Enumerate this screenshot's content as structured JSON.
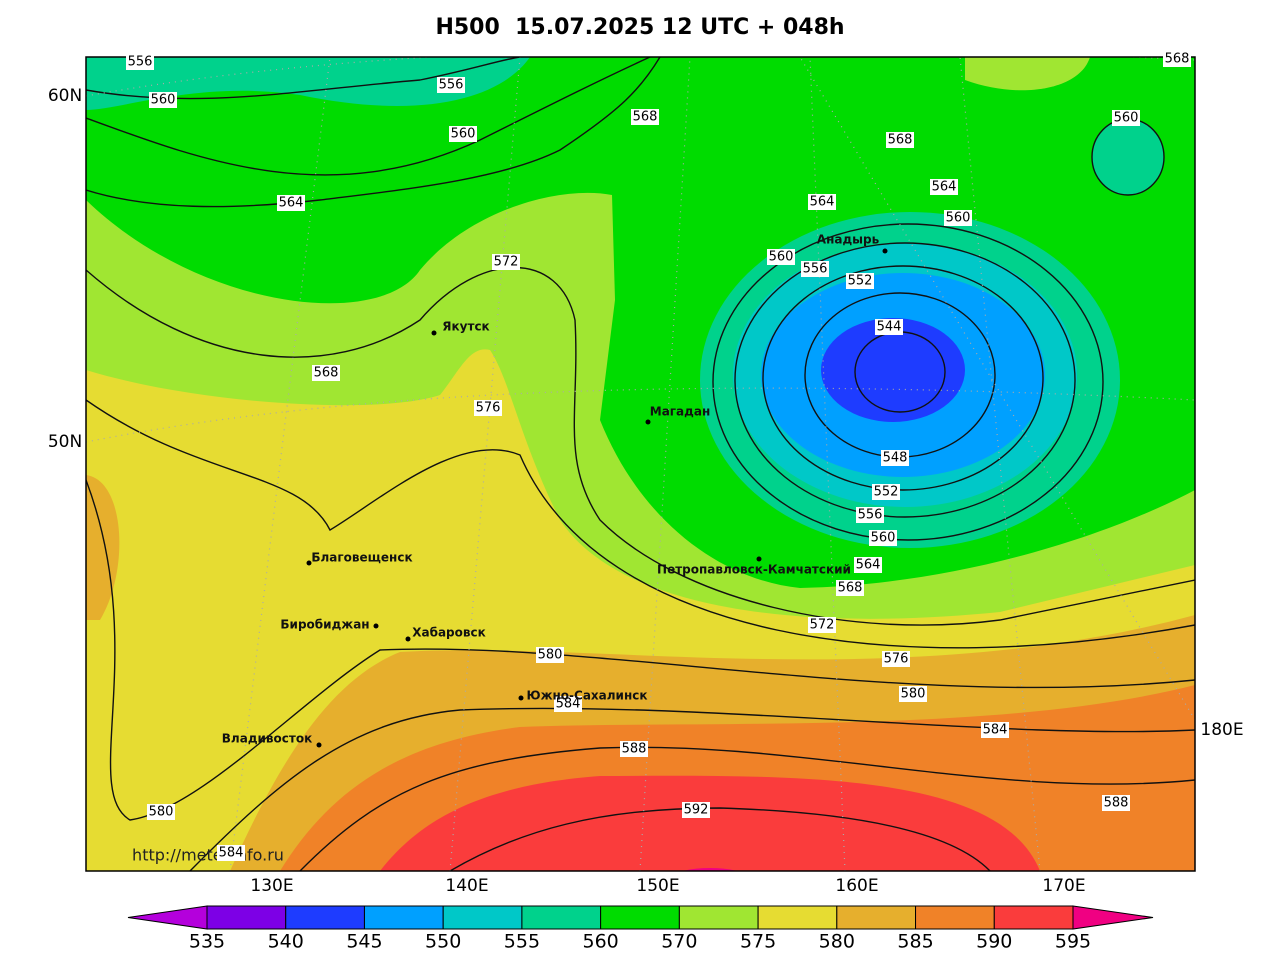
{
  "title": "H500  15.07.2025 12 UTC + 048h",
  "lat_labels": [
    "60N",
    "50N"
  ],
  "lon_labels": [
    "130E",
    "140E",
    "150E",
    "160E",
    "170E",
    "180E"
  ],
  "cities": [
    "Анадырь",
    "Якутск",
    "Магадан",
    "Петропавловск-Камчатский",
    "Благовещенск",
    "Биробиджан",
    "Хабаровск",
    "Южно-Сахалинск",
    "Владивосток"
  ],
  "contour_labels": [
    556,
    560,
    556,
    560,
    564,
    568,
    572,
    568,
    576,
    568,
    564,
    560,
    568,
    564,
    560,
    560,
    556,
    552,
    544,
    548,
    552,
    556,
    560,
    564,
    568,
    572,
    576,
    580,
    584,
    588,
    580,
    584,
    588,
    592,
    580,
    584
  ],
  "colorbar": {
    "levels": [
      535,
      540,
      545,
      550,
      555,
      560,
      570,
      575,
      580,
      585,
      590,
      595
    ],
    "colors": [
      "#b400dc",
      "#7d00e6",
      "#1e3cff",
      "#00a0ff",
      "#00c8c8",
      "#00d28c",
      "#00dc00",
      "#a0e632",
      "#e6dc32",
      "#e6af2d",
      "#f08228",
      "#fa3c3c",
      "#f00082"
    ]
  },
  "url": "http://meteoinfo.ru"
}
